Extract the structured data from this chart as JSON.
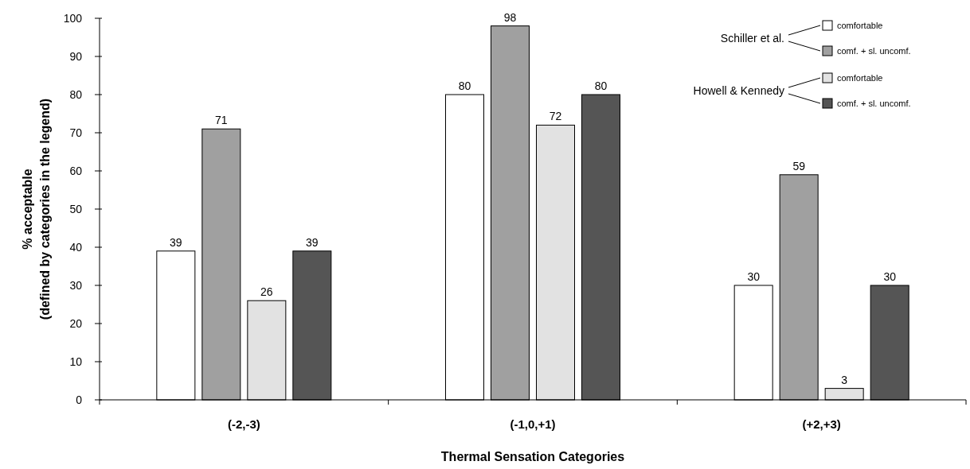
{
  "chart_data": {
    "type": "bar",
    "xlabel": "Thermal Sensation Categories",
    "ylabel": "% acceptable\n(defined by categories in the legend)",
    "categories": [
      "(-2,-3)",
      "(-1,0,+1)",
      "(+2,+3)"
    ],
    "series": [
      {
        "name": "comfortable",
        "color": "#ffffff",
        "values": [
          39,
          80,
          30
        ]
      },
      {
        "name": "comf. + sl. uncomf.",
        "color": "#a0a0a0",
        "values": [
          71,
          98,
          59
        ]
      },
      {
        "name": "comfortable",
        "color": "#e2e2e2",
        "values": [
          26,
          72,
          3
        ]
      },
      {
        "name": "comf. + sl. uncomf.",
        "color": "#555555",
        "values": [
          39,
          80,
          30
        ]
      }
    ],
    "annotations": [
      "Schiller et al.",
      "Howell & Kennedy"
    ],
    "ylim": [
      0,
      100
    ],
    "yticks": [
      0,
      10,
      20,
      30,
      40,
      50,
      60,
      70,
      80,
      90,
      100
    ],
    "data_labels": true,
    "legend": "top right",
    "grid": false
  }
}
